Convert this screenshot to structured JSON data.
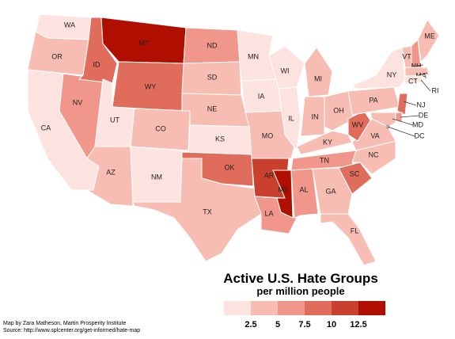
{
  "title": "Active U.S. Hate Groups",
  "subtitle": "per million people",
  "credits": [
    "Map by Zara Matheson, Martin Prosperity Institute",
    "Source: http://www.splcenter.org/get-informed/hate-map"
  ],
  "legend": {
    "colors": [
      "#fde3e0",
      "#f7bdb2",
      "#f0968a",
      "#e06c5c",
      "#c9402f",
      "#b00f00"
    ],
    "ticks": [
      2.5,
      5,
      7.5,
      10,
      12.5
    ]
  },
  "states": [
    {
      "name": "WA",
      "value": 1.5
    },
    {
      "name": "OR",
      "value": 3.7
    },
    {
      "name": "CA",
      "value": 1.5
    },
    {
      "name": "NV",
      "value": 6.2
    },
    {
      "name": "ID",
      "value": 8.8
    },
    {
      "name": "MT",
      "value": 14
    },
    {
      "name": "WY",
      "value": 8.8
    },
    {
      "name": "UT",
      "value": 1.5
    },
    {
      "name": "AZ",
      "value": 3.7
    },
    {
      "name": "CO",
      "value": 3.7
    },
    {
      "name": "NM",
      "value": 1.5
    },
    {
      "name": "ND",
      "value": 6.2
    },
    {
      "name": "SD",
      "value": 3.7
    },
    {
      "name": "NE",
      "value": 3.7
    },
    {
      "name": "KS",
      "value": 1.5
    },
    {
      "name": "OK",
      "value": 8.8
    },
    {
      "name": "TX",
      "value": 3.7
    },
    {
      "name": "MN",
      "value": 1.5
    },
    {
      "name": "IA",
      "value": 1.5
    },
    {
      "name": "MO",
      "value": 3.7
    },
    {
      "name": "AR",
      "value": 11.2
    },
    {
      "name": "LA",
      "value": 6.2
    },
    {
      "name": "WI",
      "value": 1.5
    },
    {
      "name": "IL",
      "value": 1.5
    },
    {
      "name": "MI",
      "value": 3.7
    },
    {
      "name": "IN",
      "value": 3.7
    },
    {
      "name": "OH",
      "value": 3.7
    },
    {
      "name": "KY",
      "value": 3.7
    },
    {
      "name": "TN",
      "value": 6.2
    },
    {
      "name": "MS",
      "value": 14
    },
    {
      "name": "AL",
      "value": 6.2
    },
    {
      "name": "GA",
      "value": 3.7
    },
    {
      "name": "FL",
      "value": 3.7
    },
    {
      "name": "SC",
      "value": 8.8
    },
    {
      "name": "NC",
      "value": 3.7
    },
    {
      "name": "VA",
      "value": 3.7
    },
    {
      "name": "WV",
      "value": 8.8
    },
    {
      "name": "PA",
      "value": 3.7
    },
    {
      "name": "NY",
      "value": 1.5
    },
    {
      "name": "VT",
      "value": 3.7
    },
    {
      "name": "NH",
      "value": 6.2
    },
    {
      "name": "ME",
      "value": 3.7
    },
    {
      "name": "MA",
      "value": 3.7
    },
    {
      "name": "CT",
      "value": 1.5
    },
    {
      "name": "RI",
      "value": 1.5
    },
    {
      "name": "NJ",
      "value": 8.8
    },
    {
      "name": "DE",
      "value": 6.2
    },
    {
      "name": "MD",
      "value": 3.7
    },
    {
      "name": "DC",
      "value": 3.7
    }
  ]
}
